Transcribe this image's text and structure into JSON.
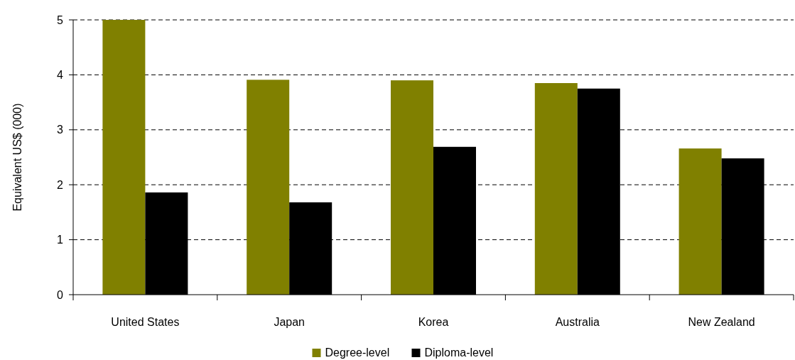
{
  "chart_data": {
    "type": "bar",
    "ylabel": "Equivalent US$ (000)",
    "categories": [
      "United States",
      "Japan",
      "Korea",
      "Australia",
      "New Zealand"
    ],
    "series": [
      {
        "name": "Degree-level",
        "color": "#808000",
        "values": [
          5,
          3.91,
          3.9,
          3.85,
          2.66
        ]
      },
      {
        "name": "Diploma-level",
        "color": "#000000",
        "values": [
          1.86,
          1.68,
          2.69,
          3.75,
          2.48
        ]
      }
    ],
    "ylim": [
      0,
      5
    ],
    "yticks": [
      0,
      1,
      2,
      3,
      4,
      5
    ],
    "grid": "y",
    "legend": "bottom"
  }
}
